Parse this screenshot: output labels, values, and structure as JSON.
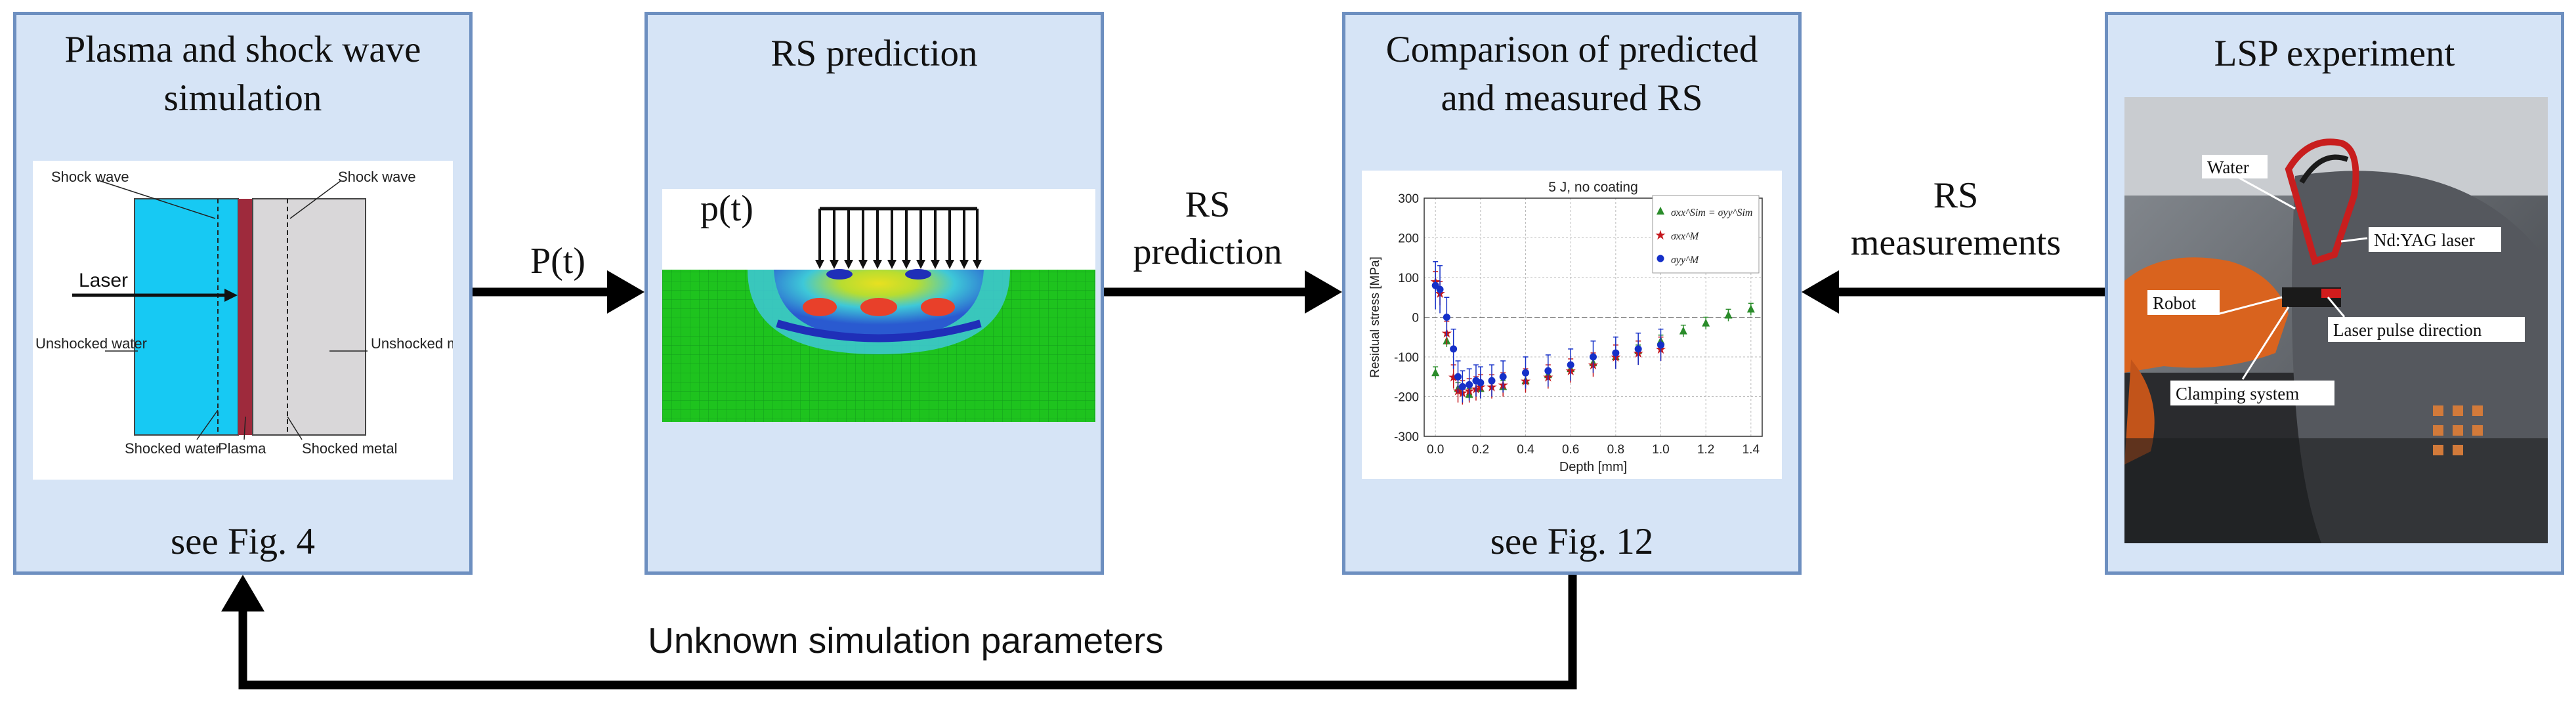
{
  "panels": {
    "simulation": {
      "title": "Plasma and shock wave simulation",
      "footer": "see Fig. 4",
      "figure": {
        "shock_wave_left": "Shock wave",
        "shock_wave_right": "Shock wave",
        "laser": "Laser",
        "unshocked_water": "Unshocked water",
        "unshocked_metal": "Unshocked metal",
        "shocked_water": "Shocked water",
        "plasma": "Plasma",
        "shocked_metal": "Shocked metal"
      }
    },
    "prediction": {
      "title": "RS prediction",
      "pressure_label": "p(t)"
    },
    "comparison": {
      "title": "Comparison of predicted and measured RS",
      "footer": "see Fig. 12"
    },
    "experiment": {
      "title": "LSP experiment",
      "photo_labels": {
        "water": "Water",
        "laser": "Nd:YAG laser",
        "robot": "Robot",
        "pulse_direction": "Laser pulse direction",
        "clamping": "Clamping system"
      }
    }
  },
  "flows": {
    "pressure": "P(t)",
    "rs_prediction": "RS prediction",
    "rs_measurements": "RS measurements",
    "feedback": "Unknown simulation parameters"
  },
  "colors": {
    "panel_bg": "#d6e4f6",
    "panel_border": "#6d8fc0",
    "water": "#17c9f3",
    "plasma": "#9e2a3c",
    "metal": "#d9d7d9"
  },
  "chart_data": {
    "type": "scatter",
    "title": "5 J, no coating",
    "xlabel": "Depth [mm]",
    "ylabel": "Residual stress [MPa]",
    "xlim": [
      -0.05,
      1.45
    ],
    "ylim": [
      -300,
      300
    ],
    "xticks": [
      0.0,
      0.2,
      0.4,
      0.6,
      0.8,
      1.0,
      1.2,
      1.4
    ],
    "yticks": [
      -300,
      -200,
      -100,
      0,
      100,
      200,
      300
    ],
    "legend": [
      "σxx^Sim = σyy^Sim",
      "σxx^M",
      "σyy^M"
    ],
    "series": [
      {
        "name": "σxx^Sim = σyy^Sim",
        "marker": "triangle",
        "color": "#2a8c2a",
        "x": [
          0.0,
          0.05,
          0.1,
          0.15,
          0.2,
          0.3,
          0.4,
          0.5,
          0.6,
          0.7,
          0.8,
          0.9,
          1.0,
          1.1,
          1.2,
          1.3,
          1.4
        ],
        "y": [
          -140,
          -60,
          -180,
          -195,
          -180,
          -175,
          -160,
          -145,
          -130,
          -115,
          -100,
          -85,
          -60,
          -35,
          -15,
          5,
          20
        ],
        "err": [
          15,
          15,
          15,
          15,
          15,
          15,
          15,
          15,
          15,
          15,
          15,
          15,
          15,
          15,
          15,
          15,
          15
        ]
      },
      {
        "name": "σxx^M",
        "marker": "star",
        "color": "#c4161c",
        "x": [
          0.0,
          0.02,
          0.05,
          0.08,
          0.1,
          0.12,
          0.15,
          0.18,
          0.2,
          0.25,
          0.3,
          0.4,
          0.5,
          0.6,
          0.7,
          0.8,
          0.9,
          1.0
        ],
        "y": [
          90,
          60,
          -40,
          -150,
          -185,
          -190,
          -185,
          -180,
          -175,
          -175,
          -170,
          -160,
          -150,
          -135,
          -120,
          -100,
          -90,
          -80
        ],
        "err": [
          25,
          30,
          30,
          30,
          30,
          30,
          30,
          30,
          30,
          30,
          30,
          30,
          30,
          30,
          30,
          30,
          30,
          30
        ]
      },
      {
        "name": "σyy^M",
        "marker": "circle",
        "color": "#1530c8",
        "x": [
          0.0,
          0.02,
          0.05,
          0.08,
          0.1,
          0.12,
          0.15,
          0.18,
          0.2,
          0.25,
          0.3,
          0.4,
          0.5,
          0.6,
          0.7,
          0.8,
          0.9,
          1.0
        ],
        "y": [
          80,
          70,
          0,
          -80,
          -150,
          -175,
          -170,
          -160,
          -165,
          -160,
          -150,
          -140,
          -135,
          -120,
          -100,
          -90,
          -80,
          -70
        ],
        "err": [
          60,
          60,
          50,
          50,
          40,
          40,
          40,
          40,
          40,
          40,
          40,
          40,
          40,
          40,
          40,
          40,
          40,
          40
        ]
      }
    ]
  }
}
